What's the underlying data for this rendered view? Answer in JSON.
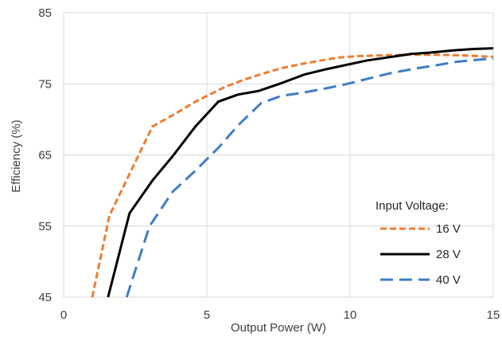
{
  "chart_data": {
    "type": "line",
    "xlabel": "Output Power (W)",
    "ylabel": "Efficiency (%)",
    "xlim": [
      0,
      15
    ],
    "ylim": [
      45,
      85
    ],
    "xticks": [
      "0",
      "5",
      "10",
      "15"
    ],
    "yticks": [
      "45",
      "55",
      "65",
      "75",
      "85"
    ],
    "grid": true,
    "legend": {
      "title": "Input Voltage:",
      "position": "bottom-right"
    },
    "series": [
      {
        "name": "16 V",
        "color": "#ED7D31",
        "dash": "short-dash",
        "points": [
          [
            1.0,
            45.0
          ],
          [
            1.6,
            56.5
          ],
          [
            3.1,
            69.0
          ],
          [
            3.9,
            70.8
          ],
          [
            4.6,
            72.5
          ],
          [
            5.6,
            74.5
          ],
          [
            6.3,
            75.6
          ],
          [
            7.0,
            76.5
          ],
          [
            7.6,
            77.2
          ],
          [
            8.3,
            77.8
          ],
          [
            9.0,
            78.3
          ],
          [
            9.6,
            78.7
          ],
          [
            10.3,
            78.9
          ],
          [
            11.0,
            79.0
          ],
          [
            12.0,
            79.1
          ],
          [
            13.0,
            79.1
          ],
          [
            14.0,
            79.0
          ],
          [
            15.0,
            78.8
          ]
        ]
      },
      {
        "name": "28 V",
        "color": "#000000",
        "dash": "solid",
        "points": [
          [
            1.55,
            45.0
          ],
          [
            2.3,
            56.8
          ],
          [
            3.1,
            61.4
          ],
          [
            3.8,
            64.8
          ],
          [
            4.6,
            69.0
          ],
          [
            5.4,
            72.5
          ],
          [
            6.1,
            73.5
          ],
          [
            6.8,
            74.0
          ],
          [
            7.6,
            75.1
          ],
          [
            8.4,
            76.3
          ],
          [
            9.1,
            77.0
          ],
          [
            9.8,
            77.6
          ],
          [
            10.6,
            78.3
          ],
          [
            11.3,
            78.7
          ],
          [
            12.1,
            79.2
          ],
          [
            12.8,
            79.4
          ],
          [
            13.6,
            79.7
          ],
          [
            14.3,
            79.9
          ],
          [
            15.0,
            80.0
          ]
        ]
      },
      {
        "name": "40 V",
        "color": "#3F7DC8",
        "dash": "long-dash",
        "points": [
          [
            2.2,
            45.0
          ],
          [
            3.0,
            55.0
          ],
          [
            3.8,
            59.8
          ],
          [
            4.6,
            62.8
          ],
          [
            5.4,
            66.0
          ],
          [
            6.1,
            69.2
          ],
          [
            6.9,
            72.3
          ],
          [
            7.6,
            73.3
          ],
          [
            8.4,
            73.8
          ],
          [
            9.2,
            74.4
          ],
          [
            9.9,
            75.0
          ],
          [
            10.7,
            75.8
          ],
          [
            11.4,
            76.5
          ],
          [
            12.2,
            77.1
          ],
          [
            13.0,
            77.6
          ],
          [
            13.7,
            78.1
          ],
          [
            14.5,
            78.4
          ],
          [
            15.0,
            78.6
          ]
        ]
      }
    ]
  }
}
